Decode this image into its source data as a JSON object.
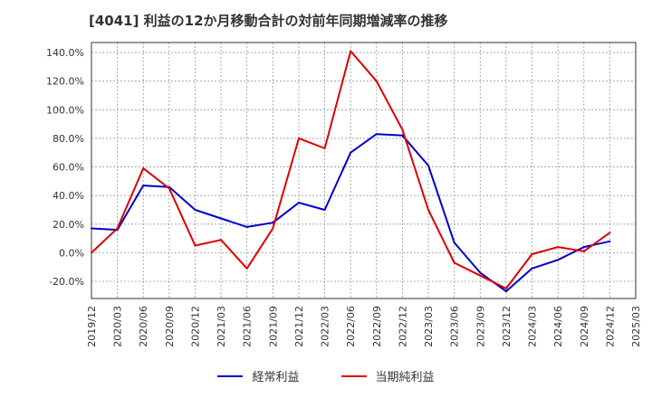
{
  "chart_data": {
    "type": "line",
    "title": "[4041]  利益の12か月移動合計の対前年同期増減率の推移",
    "xlabel": "",
    "ylabel": "",
    "ylim": [
      -32,
      147
    ],
    "y_ticks": [
      -20,
      0,
      20,
      40,
      60,
      80,
      100,
      120,
      140
    ],
    "y_tick_labels": [
      "-20.0%",
      "0.0%",
      "20.0%",
      "40.0%",
      "60.0%",
      "80.0%",
      "100.0%",
      "120.0%",
      "140.0%"
    ],
    "categories": [
      "2019/12",
      "2020/03",
      "2020/06",
      "2020/09",
      "2020/12",
      "2021/03",
      "2021/06",
      "2021/09",
      "2021/12",
      "2022/03",
      "2022/06",
      "2022/09",
      "2022/12",
      "2023/03",
      "2023/06",
      "2023/09",
      "2023/12",
      "2024/03",
      "2024/06",
      "2024/09",
      "2024/12",
      "2025/03"
    ],
    "series": [
      {
        "name": "経常利益",
        "color": "#0000cc",
        "values": [
          17,
          16,
          47,
          46,
          30,
          24,
          18,
          21,
          35,
          30,
          70,
          83,
          82,
          61,
          7,
          -14,
          -27,
          -11,
          -5,
          4,
          8,
          null
        ]
      },
      {
        "name": "当期純利益",
        "color": "#dd0000",
        "values": [
          0,
          17,
          59,
          45,
          5,
          9,
          -11,
          17,
          80,
          73,
          141,
          120,
          86,
          30,
          -7,
          -16,
          -25,
          -1,
          4,
          1,
          14,
          null
        ]
      }
    ],
    "grid": true,
    "legend_position": "bottom-center"
  }
}
